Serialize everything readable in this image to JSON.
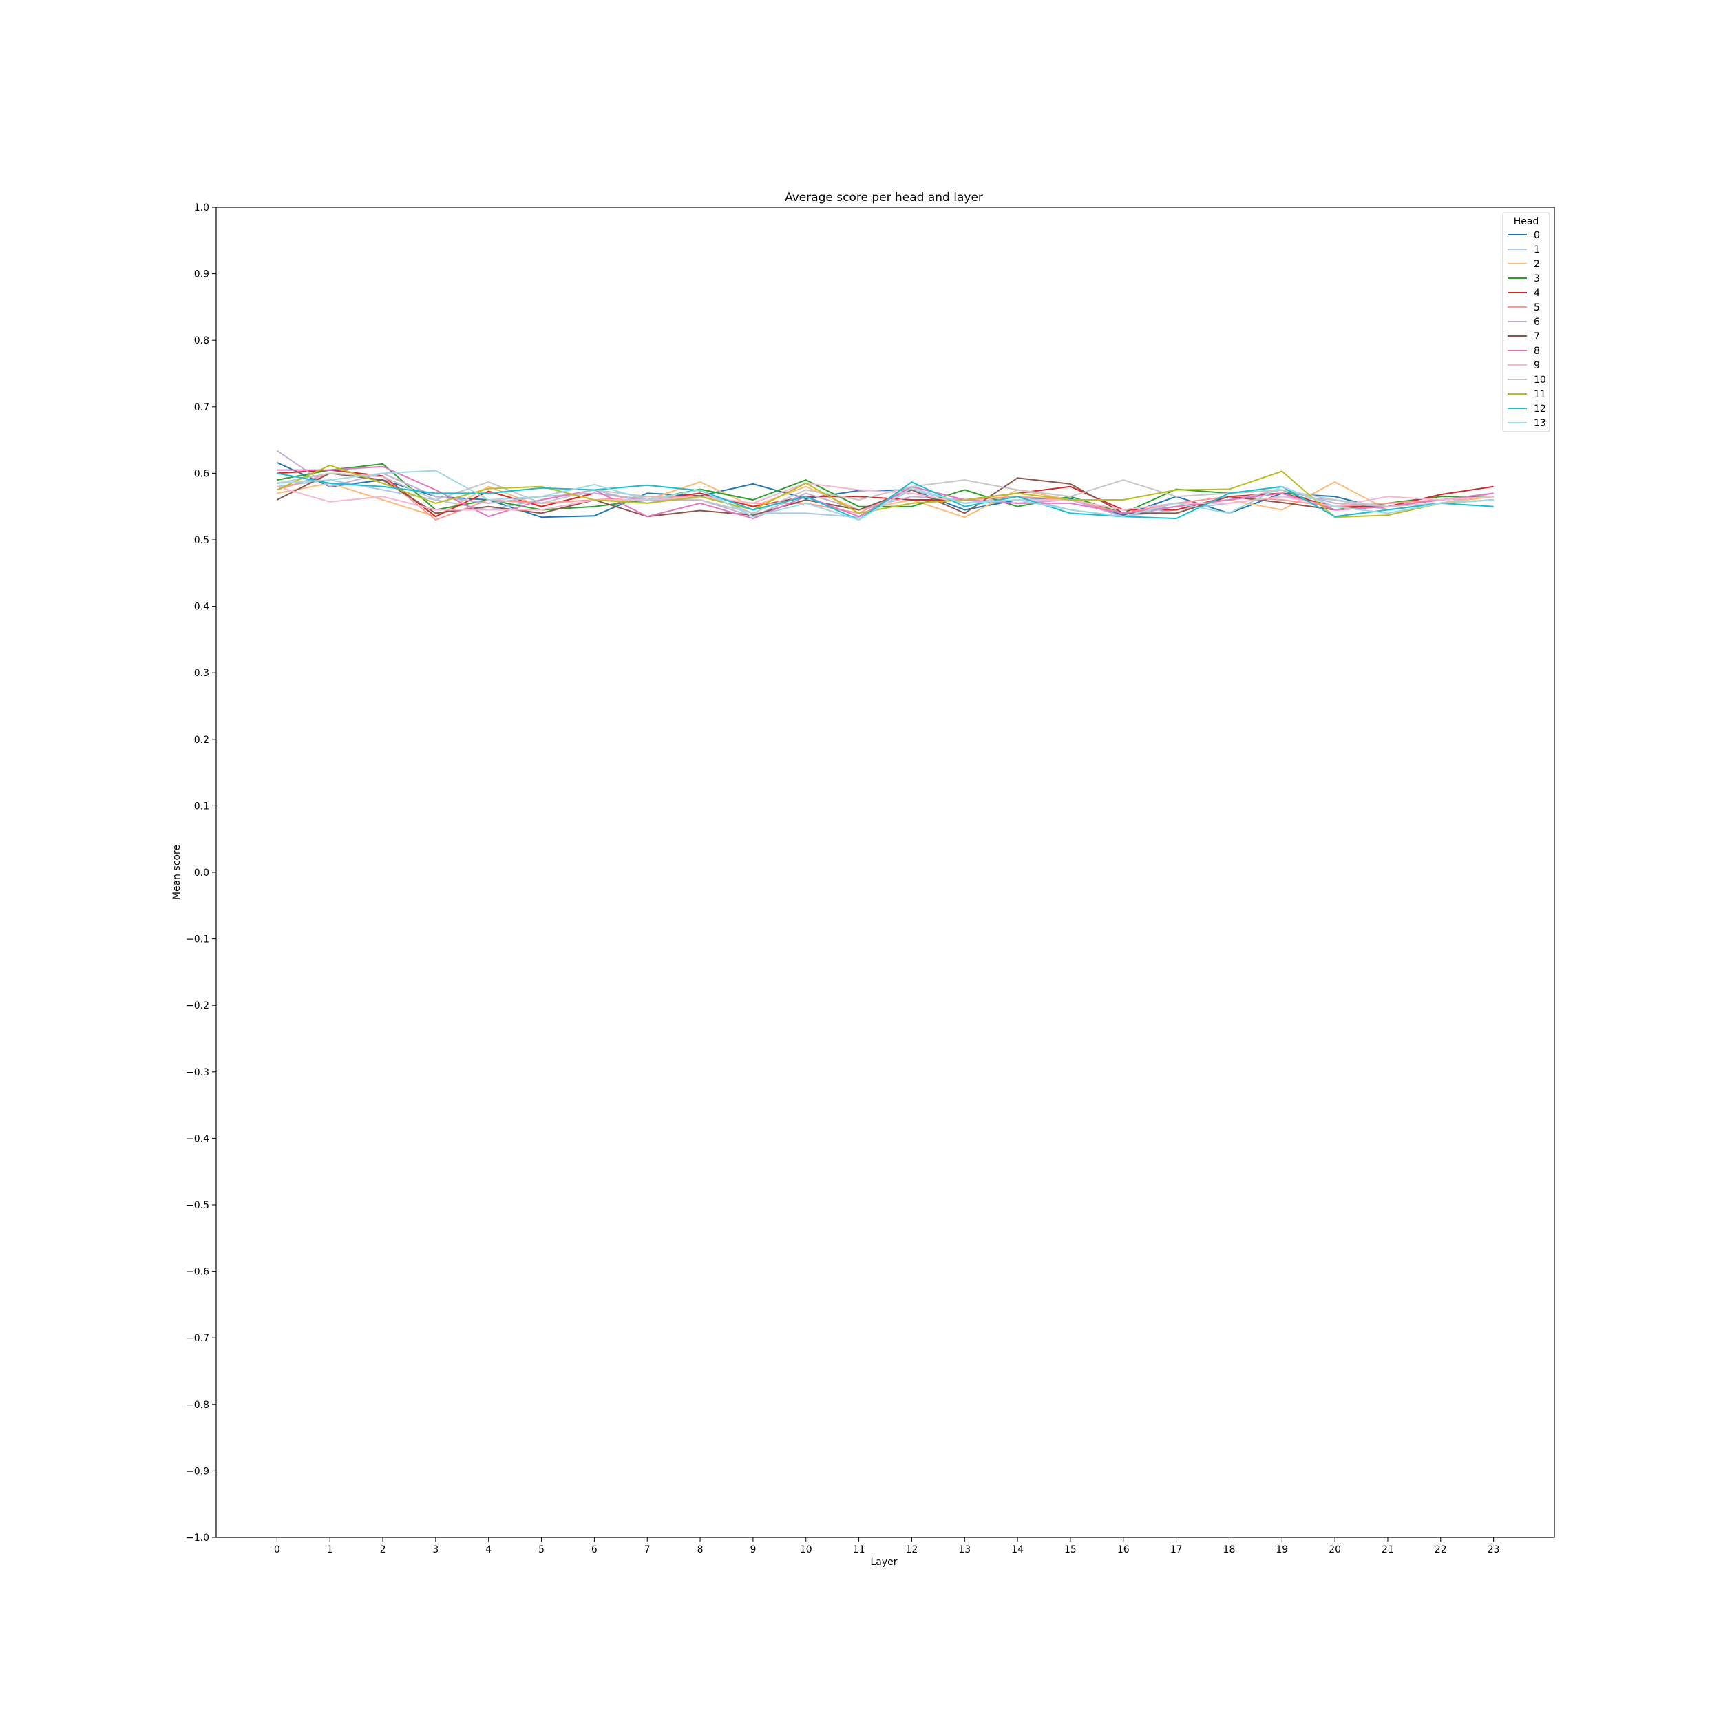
{
  "chart_data": {
    "type": "line",
    "title": "Average score per head and layer",
    "xlabel": "Layer",
    "ylabel": "Mean score",
    "xlim": [
      -1.15,
      24.15
    ],
    "ylim": [
      -1.0,
      1.0
    ],
    "x": [
      0,
      1,
      2,
      3,
      4,
      5,
      6,
      7,
      8,
      9,
      10,
      11,
      12,
      13,
      14,
      15,
      16,
      17,
      18,
      19,
      20,
      21,
      22,
      23
    ],
    "x_tick_labels": [
      "0",
      "1",
      "2",
      "3",
      "4",
      "5",
      "6",
      "7",
      "8",
      "9",
      "10",
      "11",
      "12",
      "13",
      "14",
      "15",
      "16",
      "17",
      "18",
      "19",
      "20",
      "21",
      "22",
      "23"
    ],
    "y_ticks": [
      -1.0,
      -0.9,
      -0.8,
      -0.7,
      -0.6,
      -0.5,
      -0.4,
      -0.3,
      -0.2,
      -0.1,
      0.0,
      0.1,
      0.2,
      0.3,
      0.4,
      0.5,
      0.6,
      0.7,
      0.8,
      0.9,
      1.0
    ],
    "y_tick_labels": [
      "−1.0",
      "−0.9",
      "−0.8",
      "−0.7",
      "−0.6",
      "−0.5",
      "−0.4",
      "−0.3",
      "−0.2",
      "−0.1",
      "0.0",
      "0.1",
      "0.2",
      "0.3",
      "0.4",
      "0.5",
      "0.6",
      "0.7",
      "0.8",
      "0.9",
      "1.0"
    ],
    "grid": false,
    "legend": {
      "title": "Head",
      "placement": "top-right"
    },
    "series": [
      {
        "name": "0",
        "color": "#1f77b4",
        "values": [
          0.616,
          0.58,
          0.59,
          0.565,
          0.56,
          0.534,
          0.536,
          0.57,
          0.566,
          0.584,
          0.562,
          0.574,
          0.575,
          0.545,
          0.56,
          0.562,
          0.537,
          0.565,
          0.54,
          0.57,
          0.565,
          0.545,
          0.555,
          0.56
        ]
      },
      {
        "name": "1",
        "color": "#aec7e8",
        "values": [
          0.58,
          0.59,
          0.575,
          0.56,
          0.545,
          0.56,
          0.575,
          0.555,
          0.57,
          0.54,
          0.54,
          0.534,
          0.575,
          0.555,
          0.565,
          0.545,
          0.535,
          0.545,
          0.555,
          0.565,
          0.56,
          0.545,
          0.555,
          0.57
        ]
      },
      {
        "name": "2",
        "color": "#ffbb78",
        "values": [
          0.57,
          0.585,
          0.56,
          0.535,
          0.58,
          0.55,
          0.57,
          0.56,
          0.587,
          0.55,
          0.58,
          0.545,
          0.56,
          0.534,
          0.575,
          0.56,
          0.54,
          0.55,
          0.56,
          0.545,
          0.587,
          0.545,
          0.555,
          0.565
        ]
      },
      {
        "name": "3",
        "color": "#2ca02c",
        "values": [
          0.59,
          0.605,
          0.614,
          0.545,
          0.56,
          0.545,
          0.55,
          0.56,
          0.576,
          0.56,
          0.59,
          0.55,
          0.55,
          0.575,
          0.55,
          0.565,
          0.54,
          0.576,
          0.57,
          0.575,
          0.545,
          0.555,
          0.565,
          0.565
        ]
      },
      {
        "name": "4",
        "color": "#d62728",
        "values": [
          0.6,
          0.605,
          0.596,
          0.535,
          0.573,
          0.55,
          0.57,
          0.56,
          0.57,
          0.55,
          0.565,
          0.565,
          0.56,
          0.56,
          0.57,
          0.58,
          0.545,
          0.545,
          0.565,
          0.57,
          0.55,
          0.55,
          0.568,
          0.58
        ]
      },
      {
        "name": "5",
        "color": "#ff9896",
        "values": [
          0.575,
          0.6,
          0.595,
          0.53,
          0.56,
          0.555,
          0.56,
          0.565,
          0.565,
          0.555,
          0.555,
          0.54,
          0.58,
          0.56,
          0.565,
          0.56,
          0.54,
          0.555,
          0.565,
          0.56,
          0.55,
          0.555,
          0.56,
          0.565
        ]
      },
      {
        "name": "6",
        "color": "#c5b0d5",
        "values": [
          0.634,
          0.58,
          0.6,
          0.565,
          0.555,
          0.565,
          0.57,
          0.56,
          0.56,
          0.535,
          0.57,
          0.545,
          0.565,
          0.56,
          0.555,
          0.56,
          0.535,
          0.55,
          0.56,
          0.575,
          0.555,
          0.55,
          0.56,
          0.565
        ]
      },
      {
        "name": "7",
        "color": "#8c564b",
        "values": [
          0.56,
          0.6,
          0.59,
          0.54,
          0.55,
          0.54,
          0.56,
          0.535,
          0.544,
          0.537,
          0.56,
          0.545,
          0.575,
          0.54,
          0.593,
          0.584,
          0.54,
          0.54,
          0.565,
          0.556,
          0.545,
          0.55,
          0.56,
          0.565
        ]
      },
      {
        "name": "8",
        "color": "#e377c2",
        "values": [
          0.605,
          0.605,
          0.61,
          0.575,
          0.535,
          0.56,
          0.575,
          0.535,
          0.555,
          0.532,
          0.565,
          0.535,
          0.58,
          0.56,
          0.555,
          0.555,
          0.54,
          0.55,
          0.56,
          0.57,
          0.545,
          0.55,
          0.56,
          0.57
        ]
      },
      {
        "name": "9",
        "color": "#f7b6d2",
        "values": [
          0.58,
          0.557,
          0.565,
          0.545,
          0.545,
          0.545,
          0.56,
          0.56,
          0.565,
          0.555,
          0.585,
          0.575,
          0.57,
          0.555,
          0.56,
          0.56,
          0.545,
          0.555,
          0.555,
          0.565,
          0.55,
          0.565,
          0.56,
          0.565
        ]
      },
      {
        "name": "10",
        "color": "#c7c7c7",
        "values": [
          0.585,
          0.6,
          0.595,
          0.56,
          0.587,
          0.555,
          0.575,
          0.565,
          0.56,
          0.54,
          0.575,
          0.56,
          0.58,
          0.59,
          0.575,
          0.565,
          0.59,
          0.565,
          0.57,
          0.575,
          0.56,
          0.55,
          0.555,
          0.56
        ]
      },
      {
        "name": "11",
        "color": "#bcbd22",
        "values": [
          0.575,
          0.612,
          0.585,
          0.555,
          0.577,
          0.58,
          0.56,
          0.555,
          0.565,
          0.545,
          0.585,
          0.54,
          0.555,
          0.56,
          0.57,
          0.56,
          0.56,
          0.575,
          0.576,
          0.603,
          0.534,
          0.537,
          0.555,
          0.56
        ]
      },
      {
        "name": "12",
        "color": "#17becf",
        "values": [
          0.6,
          0.585,
          0.58,
          0.57,
          0.57,
          0.578,
          0.575,
          0.582,
          0.574,
          0.545,
          0.565,
          0.53,
          0.587,
          0.55,
          0.565,
          0.54,
          0.535,
          0.532,
          0.57,
          0.58,
          0.535,
          0.545,
          0.555,
          0.55
        ]
      },
      {
        "name": "13",
        "color": "#9edae5",
        "values": [
          0.585,
          0.59,
          0.6,
          0.604,
          0.56,
          0.565,
          0.583,
          0.56,
          0.575,
          0.535,
          0.555,
          0.53,
          0.578,
          0.555,
          0.56,
          0.545,
          0.535,
          0.555,
          0.54,
          0.58,
          0.55,
          0.54,
          0.555,
          0.56
        ]
      }
    ]
  }
}
